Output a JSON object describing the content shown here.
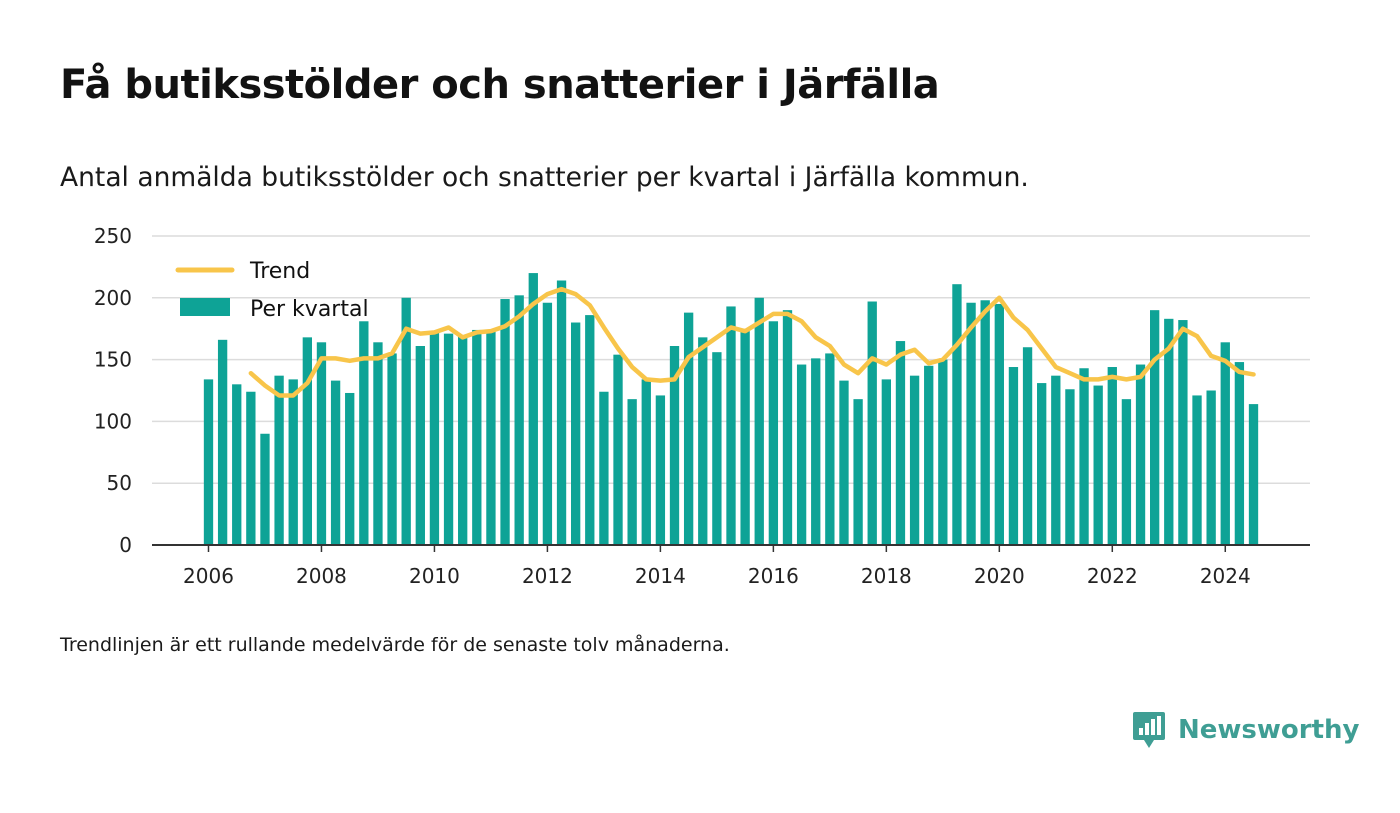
{
  "title": "Få butiksstölder och snatterier i Järfälla",
  "subtitle": "Antal anmälda butiksstölder och snatterier per kvartal i Järfälla kommun.",
  "footnote": "Trendlinjen är ett rullande medelvärde för de senaste tolv månaderna.",
  "brand": {
    "name": "Newsworthy",
    "icon": "newsworthy-logo-icon"
  },
  "colors": {
    "bars": "#0ea396",
    "trend": "#f8c54a",
    "grid": "#dcdcdc",
    "axis": "#333333",
    "brand": "#3f9e94"
  },
  "chart_data": {
    "type": "bar",
    "ylim": [
      0,
      250
    ],
    "yticks": [
      0,
      50,
      100,
      150,
      200,
      250
    ],
    "xlim": [
      2005,
      2025.5
    ],
    "xticks": [
      2006,
      2008,
      2010,
      2012,
      2014,
      2016,
      2018,
      2020,
      2022,
      2024
    ],
    "grid": true,
    "legend_position": "top-left",
    "series": [
      {
        "name": "Per kvartal",
        "type": "bar",
        "x_start": 2006,
        "step": 0.25,
        "values": [
          134,
          166,
          130,
          124,
          90,
          137,
          134,
          168,
          164,
          133,
          123,
          181,
          164,
          155,
          200,
          161,
          172,
          171,
          169,
          174,
          174,
          199,
          202,
          220,
          196,
          214,
          180,
          186,
          124,
          154,
          118,
          134,
          121,
          161,
          188,
          168,
          156,
          193,
          173,
          200,
          181,
          190,
          146,
          151,
          155,
          133,
          118,
          197,
          134,
          165,
          137,
          145,
          150,
          211,
          196,
          198,
          195,
          144,
          160,
          131,
          137,
          126,
          143,
          129,
          144,
          118,
          146,
          190,
          183,
          182,
          121,
          125,
          164,
          148,
          114
        ]
      },
      {
        "name": "Trend",
        "type": "line",
        "x_start": 2006.75,
        "step": 0.25,
        "values": [
          139,
          129,
          121,
          121,
          131,
          151,
          151,
          149,
          151,
          151,
          155,
          175,
          171,
          172,
          176,
          168,
          172,
          173,
          177,
          185,
          195,
          203,
          207,
          203,
          194,
          176,
          159,
          144,
          134,
          133,
          134,
          152,
          160,
          168,
          176,
          173,
          180,
          187,
          187,
          181,
          168,
          161,
          146,
          139,
          151,
          146,
          154,
          158,
          147,
          150,
          162,
          176,
          189,
          200,
          184,
          174,
          159,
          144,
          139,
          134,
          134,
          136,
          134,
          136,
          150,
          159,
          175,
          169,
          153,
          149,
          140,
          138
        ]
      }
    ]
  }
}
